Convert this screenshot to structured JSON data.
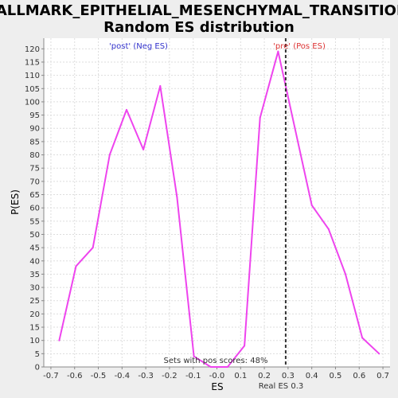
{
  "colors": {
    "line": "#ee44ee",
    "post_label": "#3333cc",
    "pre_label": "#dd3333",
    "plot_bg": "#ffffff",
    "grid": "#dddddd",
    "page_bg": "#eeeeee"
  },
  "chart_data": {
    "type": "line",
    "title": "HALLMARK_EPITHELIAL_MESENCHYMAL_TRANSITION:",
    "subtitle": "Random ES distribution",
    "xlabel": "ES",
    "ylabel": "P(ES)",
    "xlim": [
      -0.73,
      0.73
    ],
    "ylim": [
      0,
      124
    ],
    "grid": true,
    "x_ticks": [
      -0.7,
      -0.6,
      -0.5,
      -0.4,
      -0.3,
      -0.2,
      -0.1,
      0.0,
      0.1,
      0.2,
      0.3,
      0.4,
      0.5,
      0.6,
      0.7
    ],
    "x_tick_labels": [
      "-0.7",
      "-0.6",
      "-0.5",
      "-0.4",
      "-0.3",
      "-0.2",
      "-0.1",
      "-0.0",
      "0.1",
      "0.2",
      "0.3",
      "0.4",
      "0.5",
      "0.6",
      "0.7"
    ],
    "y_ticks": [
      0,
      5,
      10,
      15,
      20,
      25,
      30,
      35,
      40,
      45,
      50,
      55,
      60,
      65,
      70,
      75,
      80,
      85,
      90,
      95,
      100,
      105,
      110,
      115,
      120
    ],
    "series": [
      {
        "x": [
          -0.665,
          -0.594,
          -0.523,
          -0.452,
          -0.381,
          -0.31,
          -0.239,
          -0.168,
          -0.097,
          -0.026,
          0.045,
          0.116,
          0.182,
          0.258,
          0.329,
          0.4,
          0.471,
          0.542,
          0.613,
          0.684
        ],
        "values": [
          10,
          38,
          45,
          80,
          97,
          82,
          106,
          64,
          4,
          0,
          0,
          8,
          94,
          119,
          90,
          61,
          52,
          35,
          11,
          5
        ]
      }
    ],
    "real_es": 0.29,
    "annotations": {
      "post": "'post' (Neg ES)",
      "pre": "'pre' (Pos ES)",
      "pos_scores": "Sets with pos scores: 48%",
      "real_es": "Real ES 0.3"
    }
  }
}
